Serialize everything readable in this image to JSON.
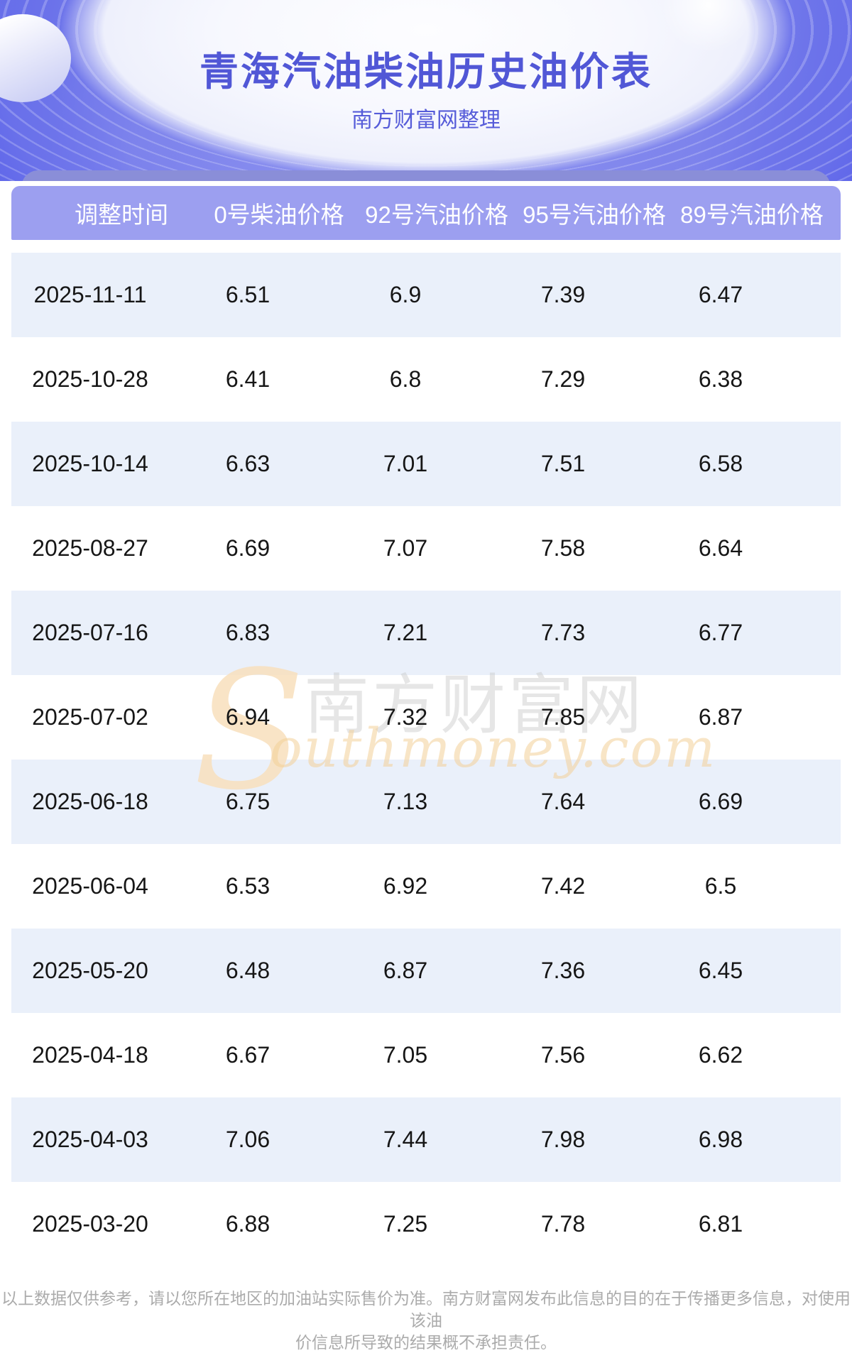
{
  "hero": {
    "title": "青海汽油柴油历史油价表",
    "subtitle": "南方财富网整理"
  },
  "table": {
    "columns": [
      "调整时间",
      "0号柴油价格",
      "92号汽油价格",
      "95号汽油价格",
      "89号汽油价格"
    ],
    "rows": [
      [
        "2025-11-11",
        "6.51",
        "6.9",
        "7.39",
        "6.47"
      ],
      [
        "2025-10-28",
        "6.41",
        "6.8",
        "7.29",
        "6.38"
      ],
      [
        "2025-10-14",
        "6.63",
        "7.01",
        "7.51",
        "6.58"
      ],
      [
        "2025-08-27",
        "6.69",
        "7.07",
        "7.58",
        "6.64"
      ],
      [
        "2025-07-16",
        "6.83",
        "7.21",
        "7.73",
        "6.77"
      ],
      [
        "2025-07-02",
        "6.94",
        "7.32",
        "7.85",
        "6.87"
      ],
      [
        "2025-06-18",
        "6.75",
        "7.13",
        "7.64",
        "6.69"
      ],
      [
        "2025-06-04",
        "6.53",
        "6.92",
        "7.42",
        "6.5"
      ],
      [
        "2025-05-20",
        "6.48",
        "6.87",
        "7.36",
        "6.45"
      ],
      [
        "2025-04-18",
        "6.67",
        "7.05",
        "7.56",
        "6.62"
      ],
      [
        "2025-04-03",
        "7.06",
        "7.44",
        "7.98",
        "6.98"
      ],
      [
        "2025-03-20",
        "6.88",
        "7.25",
        "7.78",
        "6.81"
      ]
    ]
  },
  "watermark": {
    "initial": "S",
    "cn": "南方财富网",
    "en": "outhmoney.com"
  },
  "footer": {
    "lines": [
      "以上数据仅供参考，请以您所在地区的加油站实际售价为准。南方财富网发布此信息的目的在于传播更多信息，对使用该油",
      "价信息所导致的结果概不承担责任。"
    ]
  },
  "colors": {
    "hero_purple_deep": "#5159e5",
    "hero_purple_mid": "#8e93f0",
    "title_text": "#5157d6",
    "back_band": "#8a8ed8",
    "table_header_bg": "#9c9ff0",
    "table_header_text": "#ffffff",
    "row_alt_bg": "#eaf0fa",
    "row_text": "#161616",
    "watermark_peach": "#f8dfbc",
    "watermark_gray": "#c8c8c8",
    "footer_text": "#ababab"
  }
}
